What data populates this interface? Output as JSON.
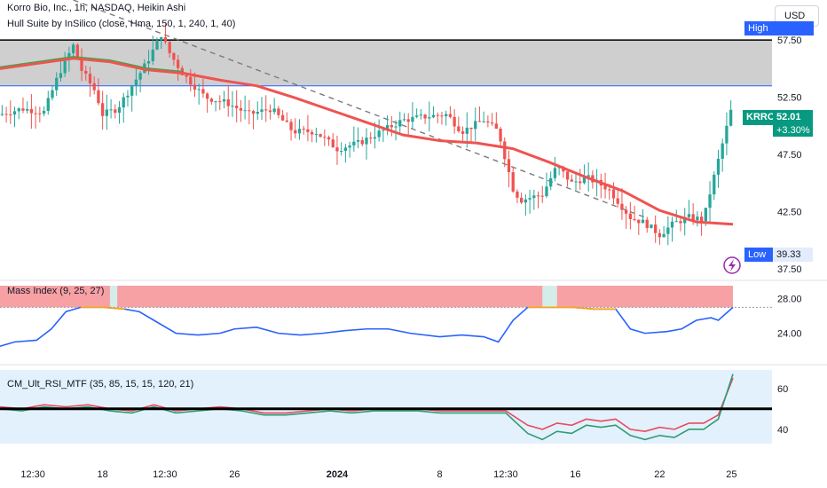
{
  "legend": {
    "title": "Korro Bio, Inc., 1h, NASDAQ, Heikin Ashi",
    "indicator": "Hull Suite by InSilico (close, Hma, 150, 1, 240, 1, 40)"
  },
  "currency": "USD",
  "tags": {
    "high": "High",
    "low": "Low",
    "low_value": "39.33",
    "ticker": "KRRO",
    "last_price": "52.01",
    "change": "+3.30%"
  },
  "panes": {
    "mass_index_label": "Mass Index (9, 25, 27)",
    "rsi_label": "CM_Ult_RSI_MTF (35, 85, 15, 15, 120, 21)"
  },
  "colors": {
    "bull": "#26a69a",
    "bear": "#ef5350",
    "hull": "#ef5350",
    "mass_line": "#2962ff",
    "mass_band": "#f7a1a5",
    "mass_gap": "#d4ede9",
    "orange": "#f5a623",
    "rsi_green": "#2e9c72",
    "rsi_red": "#e84a5f",
    "rsi_bg": "#e3f1fc",
    "zone": "#cfcfcf",
    "badge_blue": "#2962ff",
    "badge_green": "#089981",
    "trend_dash": "#7b7b7b"
  },
  "chart_data": [
    {
      "type": "candlestick",
      "title": "Korro Bio, Inc., 1h, NASDAQ, Heikin Ashi",
      "x_ticks": [
        "12:30",
        "18",
        "12:30",
        "26",
        "2024",
        "8",
        "12:30",
        "16",
        "22",
        "25"
      ],
      "y_ticks": [
        57.5,
        52.5,
        47.5,
        42.5,
        37.5
      ],
      "ylim": [
        36.8,
        61.0
      ],
      "resistance_zone": [
        53.5,
        57.5
      ],
      "high_line": 53.5,
      "last_price": 52.01,
      "change_pct": "+3.30%",
      "low": 39.33,
      "trendline": {
        "from": [
          0.1,
          61.0
        ],
        "to": [
          0.88,
          42.0
        ]
      },
      "hull_ma": [
        [
          0.0,
          55.0
        ],
        [
          0.1,
          55.9
        ],
        [
          0.15,
          55.6
        ],
        [
          0.2,
          54.9
        ],
        [
          0.25,
          54.6
        ],
        [
          0.3,
          54.0
        ],
        [
          0.35,
          53.5
        ],
        [
          0.4,
          52.5
        ],
        [
          0.45,
          51.4
        ],
        [
          0.5,
          50.3
        ],
        [
          0.55,
          49.2
        ],
        [
          0.6,
          48.7
        ],
        [
          0.65,
          48.5
        ],
        [
          0.7,
          48.0
        ],
        [
          0.75,
          46.8
        ],
        [
          0.8,
          45.5
        ],
        [
          0.85,
          44.3
        ],
        [
          0.9,
          42.6
        ],
        [
          0.95,
          41.6
        ],
        [
          1.0,
          41.4
        ]
      ],
      "price_path": [
        [
          0.0,
          51.0
        ],
        [
          0.03,
          51.5
        ],
        [
          0.06,
          51.2
        ],
        [
          0.08,
          54.5
        ],
        [
          0.1,
          57.0
        ],
        [
          0.11,
          55.0
        ],
        [
          0.13,
          53.0
        ],
        [
          0.14,
          51.0
        ],
        [
          0.16,
          51.5
        ],
        [
          0.18,
          53.5
        ],
        [
          0.2,
          55.5
        ],
        [
          0.22,
          58.0
        ],
        [
          0.23,
          56.5
        ],
        [
          0.25,
          54.5
        ],
        [
          0.28,
          52.5
        ],
        [
          0.31,
          52.0
        ],
        [
          0.34,
          51.0
        ],
        [
          0.37,
          51.5
        ],
        [
          0.4,
          49.5
        ],
        [
          0.43,
          49.5
        ],
        [
          0.46,
          48.0
        ],
        [
          0.49,
          48.5
        ],
        [
          0.52,
          49.5
        ],
        [
          0.55,
          50.5
        ],
        [
          0.58,
          50.8
        ],
        [
          0.61,
          51.0
        ],
        [
          0.63,
          49.5
        ],
        [
          0.66,
          50.5
        ],
        [
          0.68,
          49.5
        ],
        [
          0.7,
          44.5
        ],
        [
          0.71,
          43.5
        ],
        [
          0.74,
          44.0
        ],
        [
          0.76,
          46.5
        ],
        [
          0.78,
          45.0
        ],
        [
          0.8,
          45.5
        ],
        [
          0.83,
          44.5
        ],
        [
          0.86,
          42.0
        ],
        [
          0.88,
          41.5
        ],
        [
          0.9,
          40.5
        ],
        [
          0.92,
          41.5
        ],
        [
          0.94,
          42.0
        ],
        [
          0.96,
          41.8
        ],
        [
          0.97,
          44.5
        ],
        [
          0.98,
          47.0
        ],
        [
          1.0,
          52.0
        ]
      ],
      "pane_ticks_mass": [
        28.0,
        24.0
      ],
      "mass_index_ylim": [
        21.5,
        29.5
      ],
      "mass_index": [
        [
          0.0,
          22.5
        ],
        [
          0.02,
          23.0
        ],
        [
          0.05,
          23.2
        ],
        [
          0.07,
          24.5
        ],
        [
          0.09,
          26.5
        ],
        [
          0.11,
          27.0
        ],
        [
          0.14,
          27.0
        ],
        [
          0.17,
          26.8
        ],
        [
          0.19,
          26.5
        ],
        [
          0.21,
          25.5
        ],
        [
          0.24,
          24.0
        ],
        [
          0.27,
          23.8
        ],
        [
          0.3,
          24.0
        ],
        [
          0.32,
          24.5
        ],
        [
          0.35,
          24.7
        ],
        [
          0.38,
          24.0
        ],
        [
          0.41,
          23.8
        ],
        [
          0.44,
          24.0
        ],
        [
          0.47,
          24.3
        ],
        [
          0.5,
          24.5
        ],
        [
          0.53,
          24.5
        ],
        [
          0.56,
          24.0
        ],
        [
          0.6,
          23.6
        ],
        [
          0.63,
          23.8
        ],
        [
          0.66,
          23.6
        ],
        [
          0.68,
          23.0
        ],
        [
          0.7,
          25.5
        ],
        [
          0.72,
          27.0
        ],
        [
          0.75,
          27.0
        ],
        [
          0.78,
          27.0
        ],
        [
          0.81,
          26.8
        ],
        [
          0.84,
          26.8
        ],
        [
          0.86,
          24.5
        ],
        [
          0.88,
          24.0
        ],
        [
          0.91,
          24.2
        ],
        [
          0.93,
          24.5
        ],
        [
          0.95,
          25.5
        ],
        [
          0.97,
          25.8
        ],
        [
          0.98,
          25.5
        ],
        [
          1.0,
          27.0
        ]
      ],
      "mass_threshold": 27.0,
      "mass_gaps": [
        [
          0.74,
          0.76
        ],
        [
          0.15,
          0.16
        ]
      ],
      "pane_ticks_rsi": [
        60,
        40
      ],
      "rsi_ylim": [
        33.0,
        69.0
      ],
      "rsi_midline": 50.0,
      "rsi_series": [
        {
          "name": "",
          "values": [
            [
              0.0,
              51
            ],
            [
              0.03,
              50
            ],
            [
              0.06,
              52
            ],
            [
              0.09,
              51
            ],
            [
              0.12,
              52
            ],
            [
              0.15,
              50
            ],
            [
              0.18,
              49
            ],
            [
              0.21,
              52
            ],
            [
              0.24,
              49
            ],
            [
              0.27,
              50
            ],
            [
              0.3,
              51
            ],
            [
              0.33,
              50
            ],
            [
              0.36,
              48
            ],
            [
              0.39,
              48
            ],
            [
              0.42,
              49
            ],
            [
              0.45,
              50
            ],
            [
              0.48,
              49
            ],
            [
              0.51,
              50
            ],
            [
              0.54,
              50
            ],
            [
              0.57,
              50
            ],
            [
              0.6,
              49
            ],
            [
              0.63,
              49
            ],
            [
              0.66,
              49
            ],
            [
              0.69,
              49
            ],
            [
              0.72,
              42
            ],
            [
              0.74,
              40
            ],
            [
              0.76,
              43
            ],
            [
              0.78,
              42
            ],
            [
              0.8,
              45
            ],
            [
              0.82,
              44
            ],
            [
              0.84,
              45
            ],
            [
              0.86,
              40
            ],
            [
              0.88,
              39
            ],
            [
              0.9,
              41
            ],
            [
              0.92,
              40
            ],
            [
              0.94,
              43
            ],
            [
              0.96,
              43
            ],
            [
              0.98,
              47
            ],
            [
              1.0,
              65
            ]
          ]
        },
        {
          "name": "",
          "values": [
            [
              0.0,
              50
            ],
            [
              0.03,
              49
            ],
            [
              0.06,
              51
            ],
            [
              0.09,
              50
            ],
            [
              0.12,
              51
            ],
            [
              0.15,
              49
            ],
            [
              0.18,
              48
            ],
            [
              0.21,
              51
            ],
            [
              0.24,
              48
            ],
            [
              0.27,
              49
            ],
            [
              0.3,
              50
            ],
            [
              0.33,
              49
            ],
            [
              0.36,
              47
            ],
            [
              0.39,
              47
            ],
            [
              0.42,
              48
            ],
            [
              0.45,
              49
            ],
            [
              0.48,
              48
            ],
            [
              0.51,
              49
            ],
            [
              0.54,
              49
            ],
            [
              0.57,
              49
            ],
            [
              0.6,
              48
            ],
            [
              0.63,
              48
            ],
            [
              0.66,
              48
            ],
            [
              0.69,
              48
            ],
            [
              0.72,
              38
            ],
            [
              0.74,
              35
            ],
            [
              0.76,
              39
            ],
            [
              0.78,
              38
            ],
            [
              0.8,
              42
            ],
            [
              0.82,
              41
            ],
            [
              0.84,
              42
            ],
            [
              0.86,
              37
            ],
            [
              0.88,
              35
            ],
            [
              0.9,
              37
            ],
            [
              0.92,
              36
            ],
            [
              0.94,
              40
            ],
            [
              0.96,
              40
            ],
            [
              0.98,
              45
            ],
            [
              1.0,
              67
            ]
          ]
        }
      ]
    }
  ]
}
